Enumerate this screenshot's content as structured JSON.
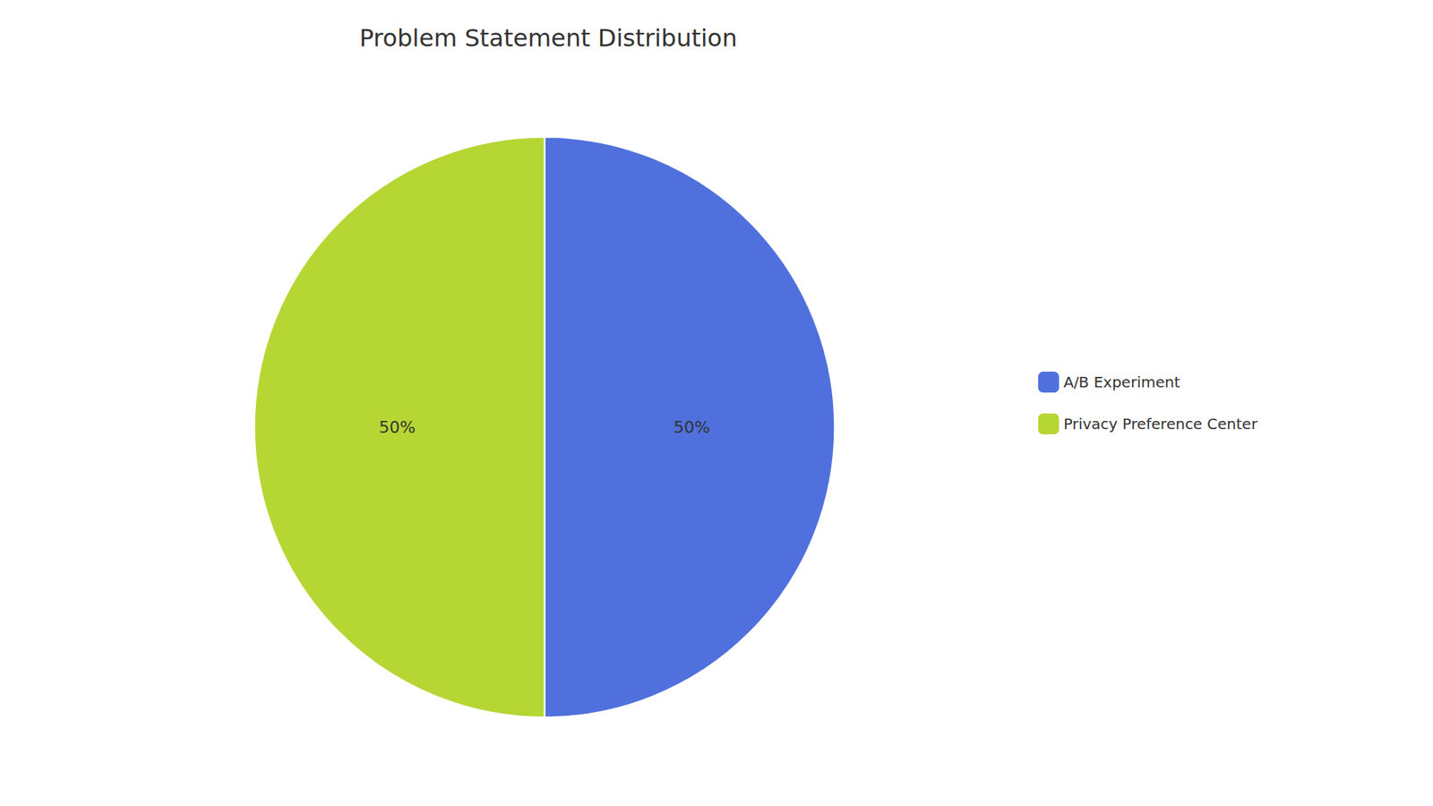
{
  "chart_data": {
    "type": "pie",
    "title": "Problem Statement Distribution",
    "categories": [
      "A/B Experiment",
      "Privacy Preference Center"
    ],
    "values": [
      50,
      50
    ],
    "value_labels": [
      "50%",
      "50%"
    ],
    "data_labels": true,
    "legend": "right"
  }
}
